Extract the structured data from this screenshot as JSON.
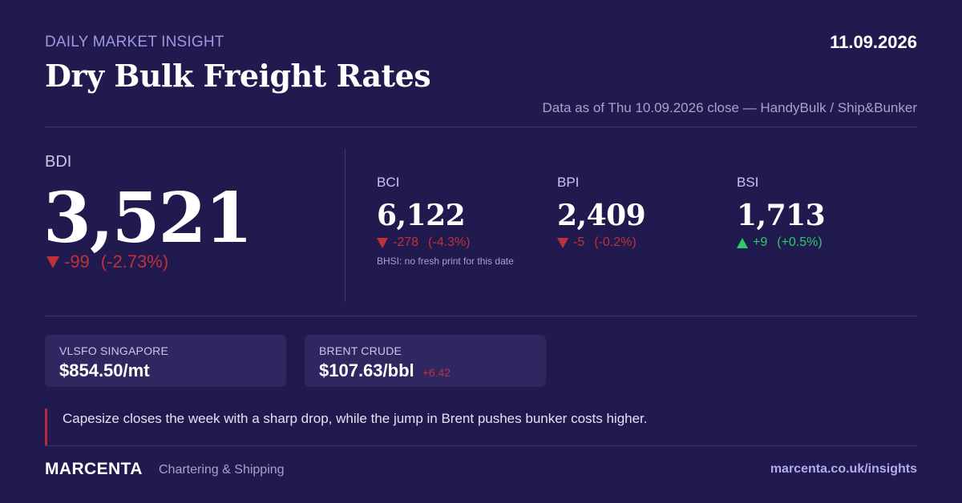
{
  "header": {
    "eyebrow": "DAILY MARKET INSIGHT",
    "date": "11.09.2026",
    "title": "Dry Bulk Freight Rates",
    "source": "Data as of Thu 10.09.2026 close — HandyBulk / Ship&Bunker"
  },
  "bdi": {
    "label": "BDI",
    "value": "3,521",
    "change": "-99",
    "pct": "(-2.73%)",
    "direction": "down"
  },
  "sub_indices": [
    {
      "label": "BCI",
      "value": "6,122",
      "change": "-278",
      "pct": "(-4.3%)",
      "direction": "down",
      "note": "BHSI: no fresh print for this date"
    },
    {
      "label": "BPI",
      "value": "2,409",
      "change": "-5",
      "pct": "(-0.2%)",
      "direction": "down"
    },
    {
      "label": "BSI",
      "value": "1,713",
      "change": "+9",
      "pct": "(+0.5%)",
      "direction": "up"
    }
  ],
  "cards": {
    "vlsfo": {
      "label": "VLSFO SINGAPORE",
      "value": "$854.50/mt"
    },
    "brent": {
      "label": "BRENT CRUDE",
      "value": "$107.63/bbl",
      "delta": "+6.42"
    }
  },
  "commentary": "Capesize closes the week with a sharp drop, while the jump in Brent pushes bunker costs higher.",
  "footer": {
    "brand": "MARCENTA",
    "tagline": "Chartering & Shipping",
    "site": "marcenta.co.uk/insights"
  },
  "colors": {
    "background": "#211a4f",
    "down": "#c0303a",
    "up": "#2ec86e",
    "accent": "#9e97e0"
  }
}
